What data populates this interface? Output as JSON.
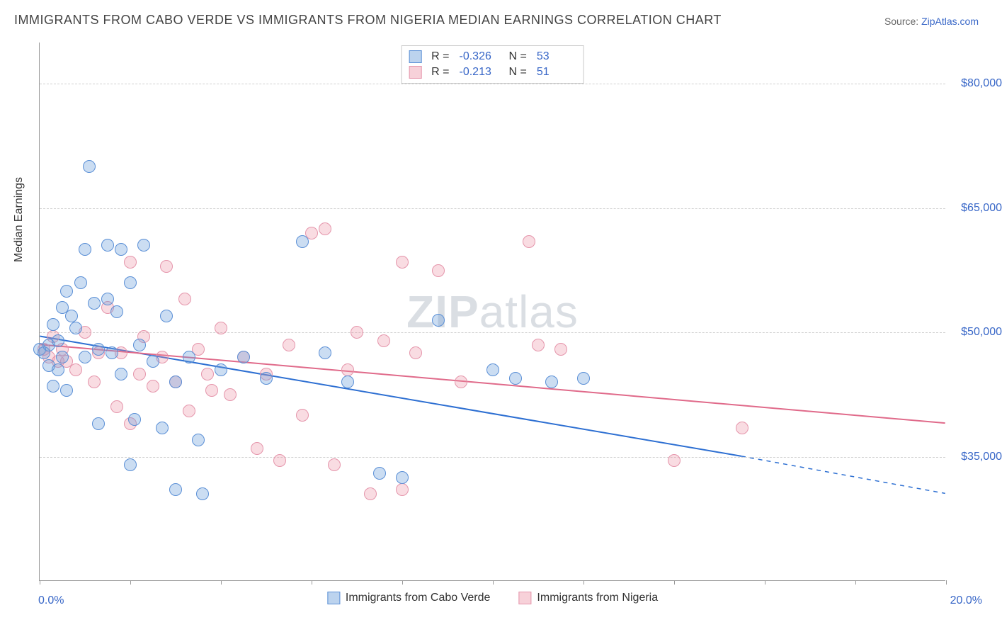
{
  "title": "IMMIGRANTS FROM CABO VERDE VS IMMIGRANTS FROM NIGERIA MEDIAN EARNINGS CORRELATION CHART",
  "source": {
    "label": "Source: ",
    "site": "ZipAtlas.com"
  },
  "y_axis_title": "Median Earnings",
  "watermark": {
    "bold": "ZIP",
    "rest": "atlas"
  },
  "chart": {
    "type": "scatter",
    "x": {
      "min": 0,
      "max": 20,
      "tick_labels": [
        "0.0%",
        "20.0%"
      ],
      "tick_positions_pct": [
        0,
        10,
        20,
        30,
        40,
        50,
        60,
        70,
        80,
        90,
        100
      ]
    },
    "y": {
      "min": 20000,
      "max": 85000,
      "grid": [
        {
          "value": 80000,
          "label": "$80,000"
        },
        {
          "value": 65000,
          "label": "$65,000"
        },
        {
          "value": 50000,
          "label": "$50,000"
        },
        {
          "value": 35000,
          "label": "$35,000"
        }
      ]
    },
    "series": [
      {
        "id": "cabo",
        "name": "Immigrants from Cabo Verde",
        "color_fill": "rgba(106,158,218,0.35)",
        "color_stroke": "#5a8fd6",
        "cls": "blue",
        "R": "-0.326",
        "N": "53",
        "trend": {
          "x1": 0,
          "y1": 49500,
          "x2": 15.5,
          "y2": 35000,
          "dash_x2": 20,
          "dash_y2": 30500,
          "color": "#2d6fd2",
          "width": 2
        },
        "points": [
          [
            0.0,
            48000
          ],
          [
            0.1,
            47500
          ],
          [
            0.2,
            46000
          ],
          [
            0.2,
            48500
          ],
          [
            0.3,
            43500
          ],
          [
            0.3,
            51000
          ],
          [
            0.4,
            49000
          ],
          [
            0.4,
            45500
          ],
          [
            0.5,
            53000
          ],
          [
            0.5,
            47000
          ],
          [
            0.6,
            55000
          ],
          [
            0.7,
            52000
          ],
          [
            0.8,
            50500
          ],
          [
            0.9,
            56000
          ],
          [
            1.0,
            60000
          ],
          [
            1.0,
            47000
          ],
          [
            1.1,
            70000
          ],
          [
            1.2,
            53500
          ],
          [
            1.3,
            48000
          ],
          [
            1.3,
            39000
          ],
          [
            1.5,
            60500
          ],
          [
            1.5,
            54000
          ],
          [
            1.6,
            47500
          ],
          [
            1.7,
            52500
          ],
          [
            1.8,
            45000
          ],
          [
            1.8,
            60000
          ],
          [
            2.0,
            56000
          ],
          [
            2.0,
            34000
          ],
          [
            2.1,
            39500
          ],
          [
            2.2,
            48500
          ],
          [
            2.3,
            60500
          ],
          [
            2.5,
            46500
          ],
          [
            2.7,
            38500
          ],
          [
            2.8,
            52000
          ],
          [
            3.0,
            44000
          ],
          [
            3.0,
            31000
          ],
          [
            3.3,
            47000
          ],
          [
            3.5,
            37000
          ],
          [
            3.6,
            30500
          ],
          [
            4.0,
            45500
          ],
          [
            4.5,
            47000
          ],
          [
            5.0,
            44500
          ],
          [
            5.8,
            61000
          ],
          [
            6.3,
            47500
          ],
          [
            6.8,
            44000
          ],
          [
            7.5,
            33000
          ],
          [
            8.0,
            32500
          ],
          [
            8.8,
            51500
          ],
          [
            10.0,
            45500
          ],
          [
            10.5,
            44500
          ],
          [
            11.3,
            44000
          ],
          [
            12.0,
            44500
          ],
          [
            0.6,
            43000
          ]
        ]
      },
      {
        "id": "nigeria",
        "name": "Immigrants from Nigeria",
        "color_fill": "rgba(236,140,160,0.3)",
        "color_stroke": "#e595ab",
        "cls": "pink",
        "R": "-0.213",
        "N": "51",
        "trend": {
          "x1": 0,
          "y1": 48500,
          "x2": 20,
          "y2": 39000,
          "color": "#e06a8a",
          "width": 2
        },
        "points": [
          [
            0.1,
            48000
          ],
          [
            0.2,
            47000
          ],
          [
            0.3,
            49500
          ],
          [
            0.4,
            46500
          ],
          [
            0.5,
            48000
          ],
          [
            0.8,
            45500
          ],
          [
            1.0,
            50000
          ],
          [
            1.2,
            44000
          ],
          [
            1.5,
            53000
          ],
          [
            1.7,
            41000
          ],
          [
            1.8,
            47500
          ],
          [
            2.0,
            39000
          ],
          [
            2.0,
            58500
          ],
          [
            2.3,
            49500
          ],
          [
            2.5,
            43500
          ],
          [
            2.7,
            47000
          ],
          [
            2.8,
            58000
          ],
          [
            3.0,
            44000
          ],
          [
            3.2,
            54000
          ],
          [
            3.3,
            40500
          ],
          [
            3.5,
            48000
          ],
          [
            3.7,
            45000
          ],
          [
            4.0,
            50500
          ],
          [
            4.2,
            42500
          ],
          [
            4.5,
            47000
          ],
          [
            4.8,
            36000
          ],
          [
            5.0,
            45000
          ],
          [
            5.3,
            34500
          ],
          [
            5.5,
            48500
          ],
          [
            5.8,
            40000
          ],
          [
            6.0,
            62000
          ],
          [
            6.3,
            62500
          ],
          [
            6.5,
            34000
          ],
          [
            6.8,
            45500
          ],
          [
            7.0,
            50000
          ],
          [
            7.3,
            30500
          ],
          [
            7.6,
            49000
          ],
          [
            8.0,
            31000
          ],
          [
            8.0,
            58500
          ],
          [
            8.3,
            47500
          ],
          [
            8.8,
            57500
          ],
          [
            9.3,
            44000
          ],
          [
            10.8,
            61000
          ],
          [
            11.0,
            48500
          ],
          [
            11.5,
            48000
          ],
          [
            14.0,
            34500
          ],
          [
            15.5,
            38500
          ],
          [
            0.6,
            46500
          ],
          [
            1.3,
            47500
          ],
          [
            2.2,
            45000
          ],
          [
            3.8,
            43000
          ]
        ]
      }
    ],
    "legend": {
      "items": [
        {
          "cls": "blue",
          "label": "Immigrants from Cabo Verde"
        },
        {
          "cls": "pink",
          "label": "Immigrants from Nigeria"
        }
      ]
    }
  }
}
